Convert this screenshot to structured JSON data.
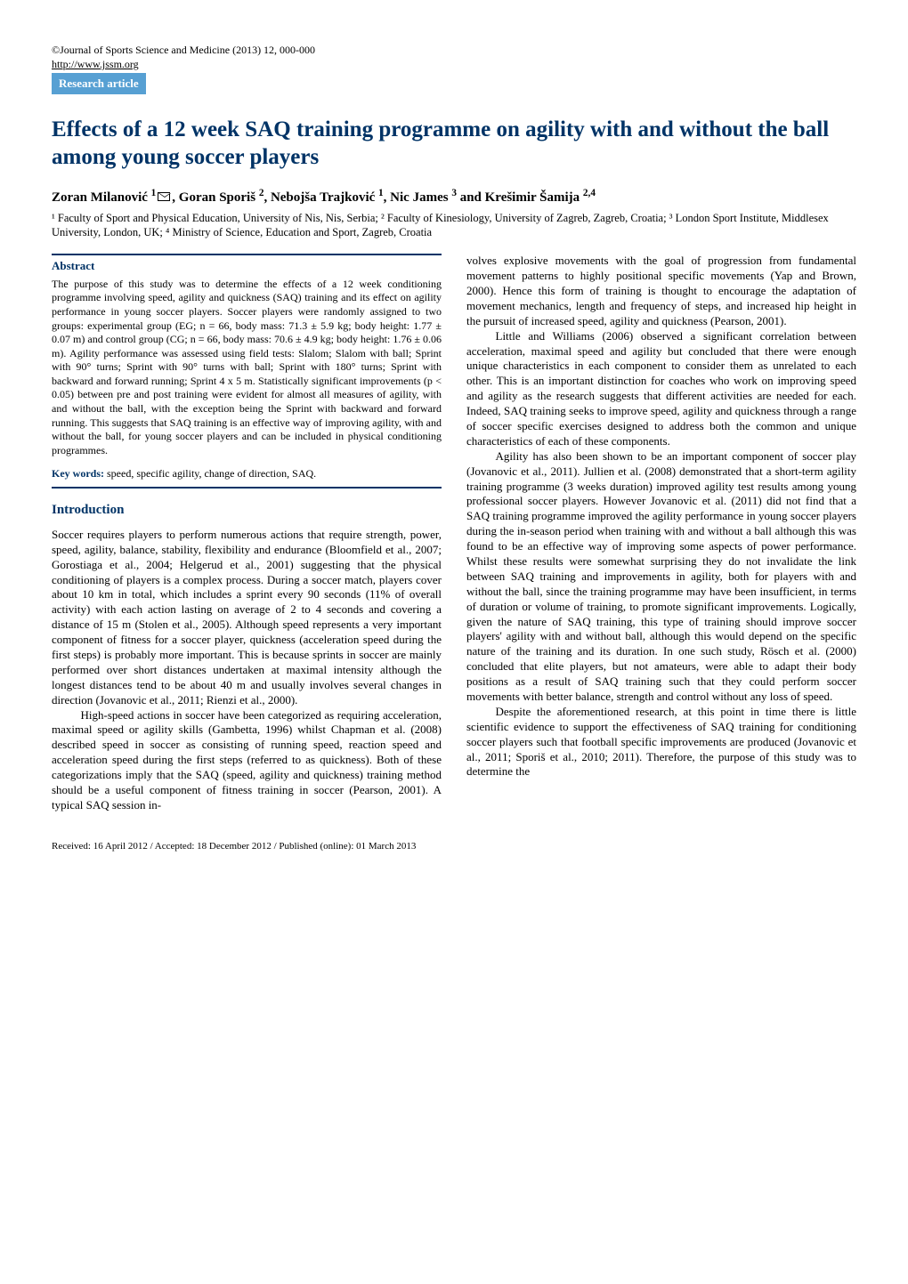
{
  "colors": {
    "accent": "#003366",
    "tag_bg": "#57a0d3",
    "tag_fg": "#ffffff",
    "text": "#000000",
    "bg": "#ffffff"
  },
  "header": {
    "journal_line": "©Journal of Sports Science and Medicine (2013) 12, 000-000",
    "url": "http://www.jssm.org",
    "tag": "Research article"
  },
  "title": "Effects of a 12 week SAQ training programme on agility with and without the ball among young soccer players",
  "authors_html": "Zoran Milanović <sup>1</sup>",
  "authors_rest": ", Goran Sporiš <sup>2</sup>, Nebojša Trajković <sup>1</sup>, Nic James <sup>3</sup> and Krešimir Šamija <sup>2,4</sup>",
  "affiliations": "¹ Faculty of Sport and Physical Education, University of Nis, Nis, Serbia; ² Faculty of Kinesiology, University of Zagreb, Zagreb, Croatia; ³ London Sport Institute, Middlesex University, London, UK; ⁴ Ministry of Science, Education and Sport, Zagreb, Croatia",
  "abstract": {
    "heading": "Abstract",
    "body": "The purpose of this study was to determine the effects of a 12 week conditioning programme involving speed, agility and quickness (SAQ) training and its effect on agility performance in young soccer players. Soccer players were randomly assigned to two groups: experimental group (EG; n = 66, body mass: 71.3 ± 5.9 kg; body height: 1.77 ± 0.07 m) and control group (CG; n = 66, body mass: 70.6 ± 4.9 kg; body height: 1.76 ± 0.06 m). Agility performance was assessed using field tests: Slalom; Slalom with ball; Sprint with 90° turns; Sprint with 90° turns with ball; Sprint with 180° turns; Sprint with backward and forward running; Sprint 4 x 5 m. Statistically significant improvements (p < 0.05) between pre and post training were evident for almost all measures of agility, with and without the ball, with the exception being the Sprint with backward and forward running. This suggests that SAQ training is an effective way of improving agility, with and without the ball, for young soccer players and can be included in physical conditioning programmes."
  },
  "keywords": {
    "label": "Key words:",
    "text": " speed, specific agility, change of direction, SAQ."
  },
  "section_intro": "Introduction",
  "left_paragraphs": [
    "Soccer requires players to perform numerous actions that require strength, power, speed, agility, balance, stability, flexibility and endurance (Bloomfield et al., 2007; Gorostiaga et al., 2004; Helgerud et al., 2001) suggesting that the physical conditioning of players is a complex process. During a soccer match, players cover about 10 km in total, which includes a sprint every 90 seconds (11% of overall activity) with each action lasting on average of 2 to 4 seconds and covering a distance of 15 m (Stolen et al., 2005). Although speed represents a very important component of fitness for a soccer player, quickness (acceleration speed during the first steps) is probably more important. This is because sprints in soccer are mainly performed over short distances undertaken at maximal intensity although the longest distances tend to be about 40 m and usually involves several changes in direction (Jovanovic et al., 2011; Rienzi et al., 2000).",
    "High-speed actions in soccer have been categorized as requiring acceleration, maximal speed or agility skills (Gambetta, 1996) whilst Chapman et al. (2008) described speed in soccer as consisting of running speed, reaction speed and acceleration speed during the first steps (referred to as quickness). Both of these categorizations imply that the SAQ (speed, agility and quickness) training method should be a useful component of fitness training in soccer (Pearson, 2001). A typical SAQ session in-"
  ],
  "right_paragraphs": [
    "volves explosive movements with the goal of progression from fundamental movement patterns to highly positional specific movements (Yap and Brown, 2000). Hence this form of training is thought to encourage the adaptation of movement mechanics, length and frequency of steps, and increased hip height in the pursuit of increased speed, agility and quickness (Pearson, 2001).",
    "Little and Williams (2006) observed a significant correlation between acceleration, maximal speed and agility but concluded that there were enough unique characteristics in each component to consider them as unrelated to each other. This is an important distinction for coaches who work on improving speed and agility as the research suggests that different activities are needed for each. Indeed, SAQ training seeks to improve speed, agility and quickness through a range of soccer specific exercises designed to address both the common and unique characteristics of each of these components.",
    "Agility has also been shown to be an important component of soccer play (Jovanovic et al., 2011). Jullien et al. (2008) demonstrated that a short-term agility training programme (3 weeks duration) improved agility test results among young professional soccer players. However Jovanovic et al. (2011) did not find that a SAQ training programme improved the agility performance in young soccer players during the in-season period when training with and without a ball although this was found to be an effective way of improving some aspects of power performance. Whilst these results were somewhat surprising they do not invalidate the link between SAQ training and improvements in agility, both for players with and without the ball, since the training programme may have been insufficient, in terms of duration or volume of training, to promote significant improvements. Logically, given the nature of SAQ training, this type of training should improve soccer players' agility with and without ball, although this would depend on the specific nature of the training and its duration. In one such study, Rösch et al. (2000) concluded that elite players, but not amateurs, were able to adapt their body positions as a result of SAQ training such that they could perform soccer movements with better balance, strength and control without any loss of speed.",
    "Despite the aforementioned research, at this point in time there is little scientific evidence to support the effectiveness of SAQ training for conditioning soccer players such that football specific improvements are produced (Jovanovic et al., 2011; Sporiš et al., 2010; 2011). Therefore, the purpose of this study was to determine the"
  ],
  "footer": "Received: 16 April 2012 / Accepted: 18 December 2012 / Published (online): 01 March 2013"
}
